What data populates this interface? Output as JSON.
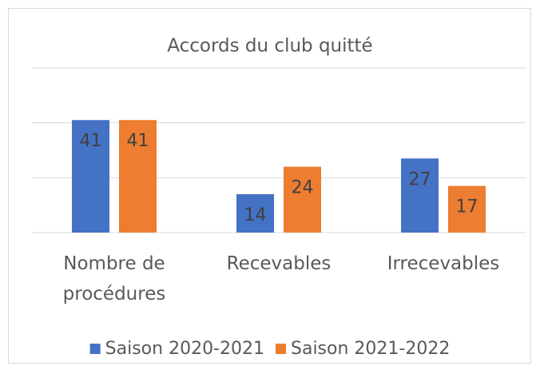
{
  "chart_data": {
    "type": "bar",
    "title": "Accords du club quitté",
    "categories": [
      "Nombre de procédures",
      "Recevables",
      "Irrecevables"
    ],
    "series": [
      {
        "name": "Saison 2020-2021",
        "color": "#4472c4",
        "values": [
          41,
          14,
          27
        ]
      },
      {
        "name": "Saison 2021-2022",
        "color": "#ed7d31",
        "values": [
          41,
          24,
          17
        ]
      }
    ],
    "ylim": [
      0,
      60
    ],
    "yticks": [
      0,
      20,
      40,
      60
    ],
    "grid": true,
    "legend": "bottom"
  }
}
